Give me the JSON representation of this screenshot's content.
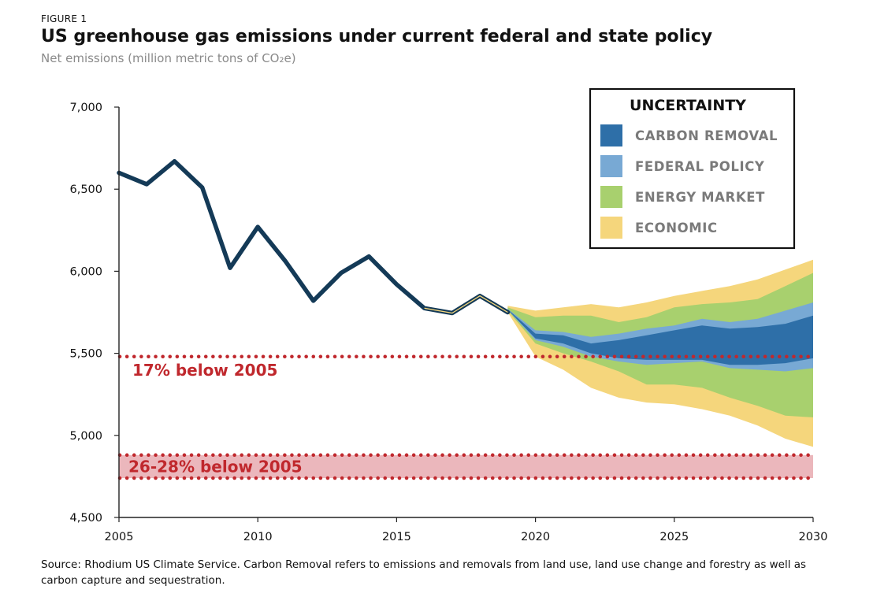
{
  "figure_label": "FIGURE 1",
  "title": "US greenhouse gas emissions under current federal and state policy",
  "subtitle": "Net emissions (million metric tons of CO₂e)",
  "source": "Source: Rhodium US Climate Service. Carbon Removal refers to emissions and removals from land use, land use change and forestry as well as carbon capture and sequestration.",
  "colors": {
    "history_line": "#143a57",
    "carbon_removal": "#2e6fa8",
    "federal_policy": "#78a9d4",
    "energy_market": "#a8d06e",
    "economic": "#f5d67c",
    "target_red": "#c0282d",
    "target_band": "#e8aab0"
  },
  "chart_data": {
    "type": "area",
    "xlim": [
      2005,
      2030
    ],
    "ylim": [
      4500,
      7000
    ],
    "x_ticks": [
      2005,
      2010,
      2015,
      2020,
      2025,
      2030
    ],
    "y_ticks": [
      4500,
      5000,
      5500,
      6000,
      6500,
      7000
    ],
    "y_tick_labels": [
      "4,500",
      "5,000",
      "5,500",
      "6,000",
      "6,500",
      "7,000"
    ],
    "grid": false,
    "legend": {
      "title": "UNCERTAINTY",
      "position": "top-right",
      "entries": [
        "CARBON REMOVAL",
        "FEDERAL POLICY",
        "ENERGY MARKET",
        "ECONOMIC"
      ]
    },
    "history": {
      "x": [
        2005,
        2006,
        2007,
        2008,
        2009,
        2010,
        2011,
        2012,
        2013,
        2014,
        2015,
        2016,
        2017,
        2018,
        2019
      ],
      "y": [
        6600,
        6530,
        6670,
        6510,
        6020,
        6270,
        6060,
        5820,
        5990,
        6090,
        5920,
        5775,
        5745,
        5850,
        5750
      ]
    },
    "projection_years": [
      2019,
      2020,
      2021,
      2022,
      2023,
      2024,
      2025,
      2026,
      2027,
      2028,
      2029,
      2030
    ],
    "bands": [
      {
        "name": "ECONOMIC",
        "upper": [
          5790,
          5760,
          5780,
          5800,
          5780,
          5810,
          5850,
          5880,
          5910,
          5950,
          6010,
          6070
        ],
        "lower": [
          5750,
          5480,
          5400,
          5290,
          5230,
          5200,
          5190,
          5160,
          5120,
          5060,
          4980,
          4930
        ]
      },
      {
        "name": "ENERGY MARKET",
        "upper": [
          5780,
          5720,
          5730,
          5730,
          5690,
          5720,
          5780,
          5800,
          5810,
          5830,
          5910,
          5990
        ],
        "lower": [
          5760,
          5560,
          5500,
          5450,
          5390,
          5310,
          5310,
          5290,
          5230,
          5180,
          5120,
          5110
        ]
      },
      {
        "name": "FEDERAL POLICY",
        "upper": [
          5770,
          5640,
          5630,
          5600,
          5620,
          5650,
          5670,
          5710,
          5690,
          5710,
          5760,
          5810
        ],
        "lower": [
          5765,
          5580,
          5540,
          5480,
          5450,
          5430,
          5440,
          5450,
          5410,
          5400,
          5390,
          5410
        ]
      },
      {
        "name": "CARBON REMOVAL",
        "upper": [
          5768,
          5620,
          5610,
          5560,
          5580,
          5610,
          5640,
          5670,
          5650,
          5660,
          5680,
          5730
        ],
        "lower": [
          5766,
          5590,
          5560,
          5500,
          5470,
          5460,
          5460,
          5460,
          5430,
          5430,
          5440,
          5470
        ]
      }
    ],
    "targets": [
      {
        "label": "17% below 2005",
        "value": 5480
      },
      {
        "label": "26-28% below 2005",
        "upper": 4880,
        "lower": 4740
      }
    ]
  }
}
